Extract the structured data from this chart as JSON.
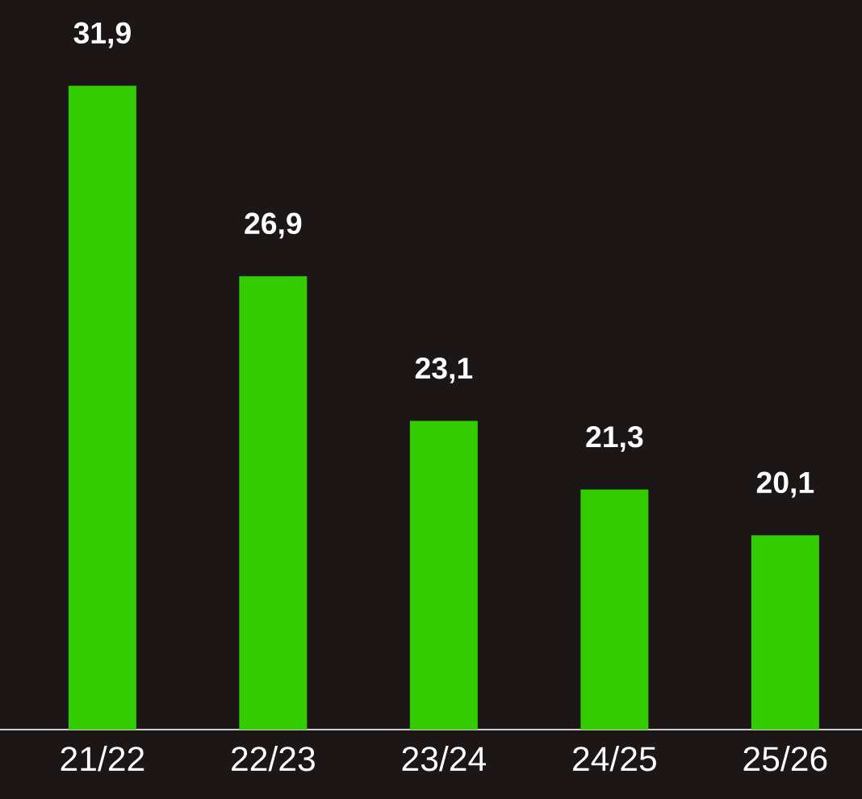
{
  "chart_data": {
    "type": "bar",
    "categories": [
      "21/22",
      "22/23",
      "23/24",
      "24/25",
      "25/26"
    ],
    "values": [
      31.9,
      26.9,
      23.1,
      21.3,
      20.1
    ],
    "value_labels": [
      "31,9",
      "26,9",
      "23,1",
      "21,3",
      "20,1"
    ],
    "color": "#33cc00",
    "ylim": [
      15,
      34.15
    ]
  }
}
